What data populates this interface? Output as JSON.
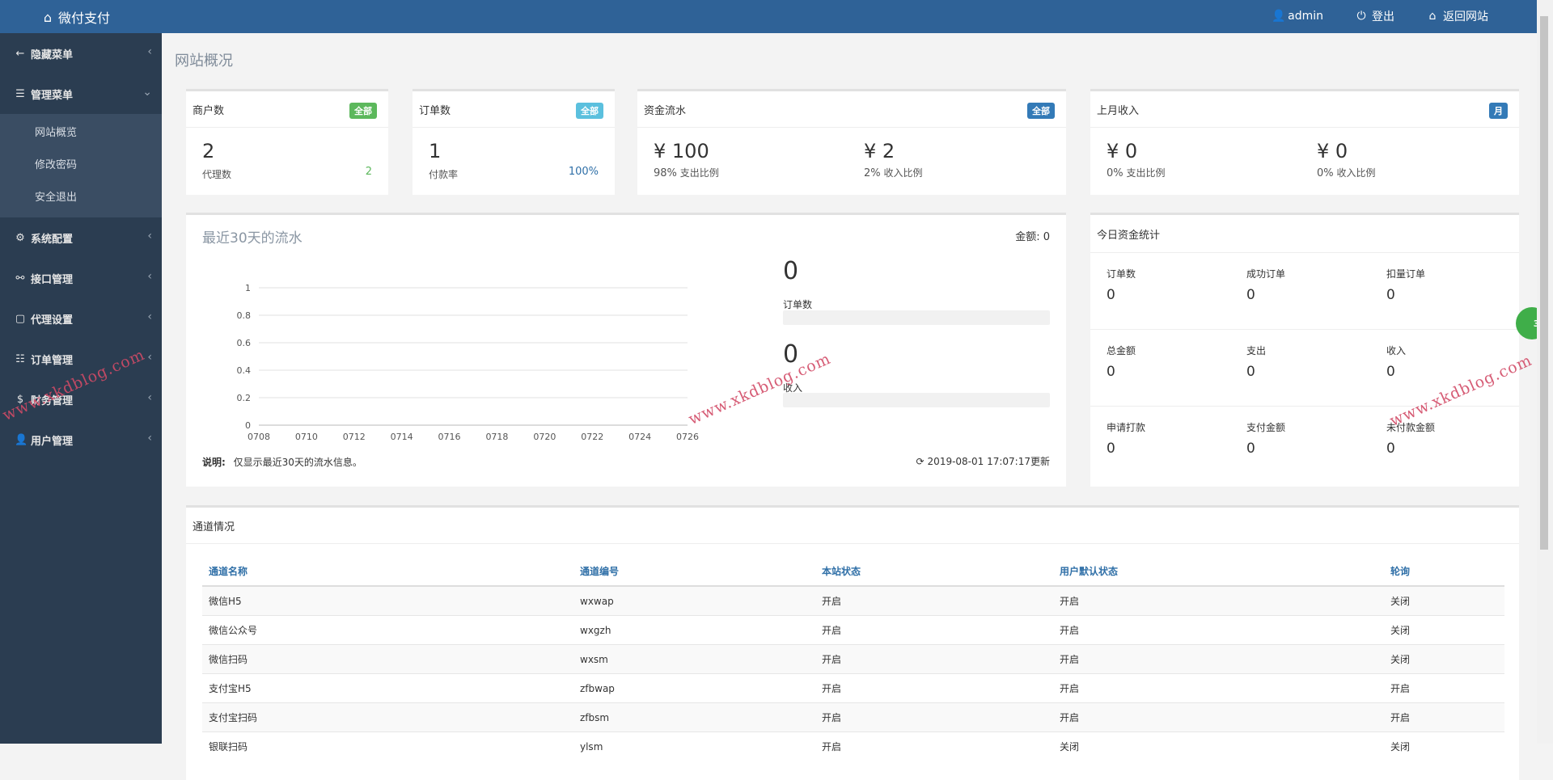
{
  "header": {
    "brand": "微付支付",
    "user": "admin",
    "logout": "登出",
    "back": "返回网站"
  },
  "sidebar": {
    "items": [
      {
        "label": "隐藏菜单",
        "icon": "arrow-left-icon"
      },
      {
        "label": "管理菜单",
        "icon": "list-icon"
      },
      {
        "label": "系统配置",
        "icon": "gear-icon"
      },
      {
        "label": "接口管理",
        "icon": "link-icon"
      },
      {
        "label": "代理设置",
        "icon": "square-icon"
      },
      {
        "label": "订单管理",
        "icon": "list-icon"
      },
      {
        "label": "财务管理",
        "icon": "dollar-icon"
      },
      {
        "label": "用户管理",
        "icon": "user-icon"
      }
    ],
    "sub": [
      "网站概览",
      "修改密码",
      "安全退出"
    ]
  },
  "page_title": "网站概况",
  "cards": {
    "merchants": {
      "title": "商户数",
      "badge": "全部",
      "value": "2",
      "sub_label": "代理数",
      "sub_value": "2"
    },
    "orders": {
      "title": "订单数",
      "badge": "全部",
      "value": "1",
      "sub_label": "付款率",
      "sub_value": "100%"
    },
    "flow": {
      "title": "资金流水",
      "badge": "全部",
      "v1": "¥ 100",
      "l1_pct": "98%",
      "l1": "支出比例",
      "v2": "¥ 2",
      "l2_pct": "2%",
      "l2": "收入比例"
    },
    "lastmonth": {
      "title": "上月收入",
      "badge": "月",
      "v1": "¥ 0",
      "l1_pct": "0%",
      "l1": "支出比例",
      "v2": "¥ 0",
      "l2_pct": "0%",
      "l2": "收入比例"
    }
  },
  "recent": {
    "title": "最近30天的流水",
    "amount_label": "金额:",
    "amount": "0",
    "orders_value": "0",
    "orders_label": "订单数",
    "income_value": "0",
    "income_label": "收入",
    "note_label": "说明:",
    "note": "仅显示最近30天的流水信息。",
    "updated": "2019-08-01 17:07:17更新"
  },
  "chart_data": {
    "type": "line",
    "x": [
      "0708",
      "0710",
      "0712",
      "0714",
      "0716",
      "0718",
      "0720",
      "0722",
      "0724",
      "0726"
    ],
    "series": [
      {
        "values": [
          0,
          0,
          0,
          0,
          0,
          0,
          0,
          0,
          0,
          0
        ]
      }
    ],
    "yticks": [
      "0",
      "0.2",
      "0.4",
      "0.6",
      "0.8",
      "1"
    ],
    "ylim": [
      0,
      1
    ],
    "title": "",
    "xlabel": "",
    "ylabel": "",
    "grid": true
  },
  "today": {
    "title": "今日资金统计",
    "cells": [
      {
        "label": "订单数",
        "value": "0"
      },
      {
        "label": "成功订单",
        "value": "0"
      },
      {
        "label": "扣量订单",
        "value": "0"
      },
      {
        "label": "总金额",
        "value": "0"
      },
      {
        "label": "支出",
        "value": "0"
      },
      {
        "label": "收入",
        "value": "0"
      },
      {
        "label": "申请打款",
        "value": "0"
      },
      {
        "label": "支付金额",
        "value": "0"
      },
      {
        "label": "未付款金额",
        "value": "0"
      }
    ]
  },
  "channels": {
    "title": "通道情况",
    "headers": [
      "通道名称",
      "通道编号",
      "本站状态",
      "用户默认状态",
      "轮询"
    ],
    "rows": [
      [
        "微信H5",
        "wxwap",
        "开启",
        "开启",
        "关闭"
      ],
      [
        "微信公众号",
        "wxgzh",
        "开启",
        "开启",
        "关闭"
      ],
      [
        "微信扫码",
        "wxsm",
        "开启",
        "开启",
        "关闭"
      ],
      [
        "支付宝H5",
        "zfbwap",
        "开启",
        "开启",
        "开启"
      ],
      [
        "支付宝扫码",
        "zfbsm",
        "开启",
        "开启",
        "开启"
      ],
      [
        "银联扫码",
        "ylsm",
        "开启",
        "关闭",
        "关闭"
      ]
    ]
  },
  "watermark": "www.xkdblog.com",
  "bubble": "30",
  "colors": {
    "topbar": "#2f6297",
    "sidebar": "#2b3d51",
    "green": "#5cb85c",
    "blue": "#5bc0de",
    "navy": "#337ab7"
  }
}
